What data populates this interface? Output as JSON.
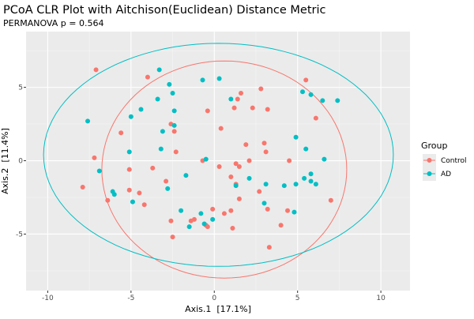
{
  "chart_data": {
    "type": "scatter",
    "title": "PCoA CLR Plot with Aitchison(Euclidean) Distance Metric",
    "subtitle": "PERMANOVA p = 0.564",
    "xlabel": "Axis.1  [17.1%]",
    "ylabel": "Axis.2  [11.4%]",
    "xlim": [
      -11.3,
      11.75
    ],
    "ylim": [
      -8.85,
      8.8
    ],
    "xticks": [
      -10,
      -5,
      0,
      5,
      10
    ],
    "xtick_labels": [
      "-10",
      "-5",
      "0",
      "5",
      "10"
    ],
    "yticks": [
      -5,
      0,
      5
    ],
    "ytick_labels": [
      "-5",
      "0",
      "5"
    ],
    "grid": true,
    "legend": {
      "title": "Group",
      "placement": "right",
      "entries": [
        "Control",
        "AD"
      ]
    },
    "series": [
      {
        "name": "Control",
        "color": "#F8766D",
        "ellipse": {
          "center": [
            0.6,
            -0.6
          ],
          "radii": [
            7.35,
            7.4
          ]
        },
        "points": [
          [
            -7.1,
            6.2
          ],
          [
            -4.0,
            5.7
          ],
          [
            -0.4,
            3.4
          ],
          [
            -2.6,
            2.5
          ],
          [
            -2.4,
            2.0
          ],
          [
            -5.6,
            1.9
          ],
          [
            -2.3,
            0.6
          ],
          [
            -7.2,
            0.2
          ],
          [
            -0.7,
            0.0
          ],
          [
            0.4,
            2.2
          ],
          [
            5.5,
            5.5
          ],
          [
            2.8,
            4.9
          ],
          [
            1.6,
            4.6
          ],
          [
            1.4,
            4.2
          ],
          [
            1.2,
            3.6
          ],
          [
            2.3,
            3.6
          ],
          [
            3.2,
            3.5
          ],
          [
            6.1,
            2.9
          ],
          [
            1.9,
            1.1
          ],
          [
            3.0,
            1.2
          ],
          [
            3.1,
            0.6
          ],
          [
            1.3,
            -0.2
          ],
          [
            2.1,
            0.0
          ],
          [
            4.5,
            0.0
          ],
          [
            0.3,
            -0.4
          ],
          [
            1.5,
            -0.4
          ],
          [
            -7.9,
            -1.8
          ],
          [
            -5.1,
            -0.6
          ],
          [
            -3.7,
            -0.5
          ],
          [
            -2.9,
            -1.4
          ],
          [
            -5.1,
            -2.0
          ],
          [
            -4.5,
            -2.2
          ],
          [
            -6.4,
            -2.7
          ],
          [
            -4.2,
            -3.0
          ],
          [
            -2.6,
            -4.1
          ],
          [
            -1.4,
            -4.1
          ],
          [
            -1.2,
            -4.0
          ],
          [
            -0.1,
            -3.3
          ],
          [
            -0.5,
            -4.4
          ],
          [
            -0.4,
            -4.5
          ],
          [
            -2.5,
            -5.2
          ],
          [
            1.0,
            -1.1
          ],
          [
            1.3,
            -1.6
          ],
          [
            2.7,
            -2.1
          ],
          [
            1.5,
            -2.6
          ],
          [
            0.6,
            -3.6
          ],
          [
            1.0,
            -3.4
          ],
          [
            3.2,
            -3.3
          ],
          [
            4.4,
            -3.4
          ],
          [
            1.1,
            -4.6
          ],
          [
            4.0,
            -4.4
          ],
          [
            7.0,
            -2.7
          ],
          [
            3.3,
            -5.9
          ]
        ]
      },
      {
        "name": "AD",
        "color": "#00BFC4",
        "ellipse": {
          "center": [
            0.25,
            0.4
          ],
          "radii": [
            10.5,
            7.6
          ]
        },
        "points": [
          [
            -3.3,
            6.2
          ],
          [
            -2.7,
            5.2
          ],
          [
            -0.7,
            5.5
          ],
          [
            0.3,
            5.6
          ],
          [
            -2.5,
            4.6
          ],
          [
            -3.4,
            4.2
          ],
          [
            -4.4,
            3.5
          ],
          [
            -5.0,
            3.0
          ],
          [
            -2.4,
            3.4
          ],
          [
            -7.6,
            2.7
          ],
          [
            -2.4,
            2.4
          ],
          [
            -3.1,
            2.0
          ],
          [
            -3.2,
            0.8
          ],
          [
            -5.1,
            0.6
          ],
          [
            -0.5,
            0.1
          ],
          [
            1.0,
            4.2
          ],
          [
            5.3,
            4.7
          ],
          [
            5.8,
            4.5
          ],
          [
            6.5,
            4.1
          ],
          [
            7.4,
            4.1
          ],
          [
            4.9,
            1.6
          ],
          [
            5.5,
            0.8
          ],
          [
            6.6,
            0.1
          ],
          [
            -6.9,
            -0.7
          ],
          [
            -1.7,
            -1.0
          ],
          [
            -2.8,
            -1.9
          ],
          [
            -6.1,
            -2.1
          ],
          [
            -6.0,
            -2.3
          ],
          [
            -4.9,
            -2.8
          ],
          [
            -2.0,
            -3.4
          ],
          [
            -0.8,
            -3.6
          ],
          [
            -1.5,
            -4.5
          ],
          [
            -0.1,
            -4.0
          ],
          [
            -0.6,
            -4.3
          ],
          [
            2.1,
            -1.2
          ],
          [
            1.3,
            -1.7
          ],
          [
            3.1,
            -1.6
          ],
          [
            4.2,
            -1.7
          ],
          [
            4.9,
            -1.6
          ],
          [
            5.4,
            -1.2
          ],
          [
            5.8,
            -0.9
          ],
          [
            5.8,
            -1.4
          ],
          [
            6.1,
            -1.6
          ],
          [
            3.0,
            -2.9
          ],
          [
            4.8,
            -3.5
          ]
        ]
      }
    ]
  }
}
